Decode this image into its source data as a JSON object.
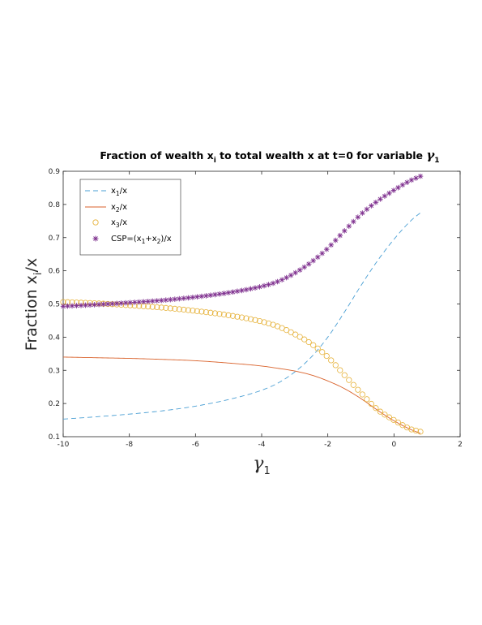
{
  "chart_data": {
    "type": "line",
    "title": {
      "prefix": "Fraction of wealth x",
      "sub": "i",
      "middle": " to total wealth x at t=0 for variable ",
      "symbol": "γ",
      "symbol_sub": "1"
    },
    "xlabel": {
      "symbol": "γ",
      "sub": "1"
    },
    "ylabel": {
      "prefix": "Fraction x",
      "sub": "i",
      "suffix": "/x"
    },
    "xlim": [
      -10,
      2
    ],
    "ylim": [
      0.1,
      0.9
    ],
    "xticks": [
      "-10",
      "-8",
      "-6",
      "-4",
      "-2",
      "0",
      "2"
    ],
    "yticks": [
      "0.1",
      "0.2",
      "0.3",
      "0.4",
      "0.5",
      "0.6",
      "0.7",
      "0.8",
      "0.9"
    ],
    "grid": false,
    "legend_position": "top-left",
    "x_points": [
      -10,
      -9,
      -8,
      -7,
      -6,
      -5,
      -4,
      -3.5,
      -3,
      -2.5,
      -2,
      -1.5,
      -1,
      -0.5,
      0,
      0.5,
      0.8
    ],
    "series": [
      {
        "legend": {
          "prefix": "x",
          "sub": "1",
          "suffix": "/x"
        },
        "style": "dashed",
        "marker": "none",
        "color": "#4a9fd4",
        "values": [
          0.153,
          0.16,
          0.168,
          0.178,
          0.192,
          0.212,
          0.24,
          0.262,
          0.295,
          0.34,
          0.4,
          0.475,
          0.555,
          0.63,
          0.695,
          0.75,
          0.775
        ]
      },
      {
        "legend": {
          "prefix": "x",
          "sub": "2",
          "suffix": "/x"
        },
        "style": "solid",
        "marker": "none",
        "color": "#d9622b",
        "values": [
          0.34,
          0.338,
          0.336,
          0.333,
          0.329,
          0.322,
          0.313,
          0.306,
          0.298,
          0.286,
          0.268,
          0.245,
          0.215,
          0.18,
          0.148,
          0.122,
          0.11
        ]
      },
      {
        "legend": {
          "prefix": "x",
          "sub": "3",
          "suffix": "/x"
        },
        "style": "none",
        "marker": "circle",
        "color": "#e6b23a",
        "values": [
          0.506,
          0.502,
          0.496,
          0.489,
          0.479,
          0.466,
          0.447,
          0.432,
          0.409,
          0.38,
          0.34,
          0.286,
          0.232,
          0.182,
          0.15,
          0.123,
          0.115
        ]
      },
      {
        "legend": {
          "prefix": "CSP=(x",
          "sub": "1",
          "middle": "+x",
          "sub2": "2",
          "suffix": ")/x"
        },
        "style": "none",
        "marker": "star",
        "color": "#7e2f8e",
        "values": [
          0.493,
          0.498,
          0.504,
          0.511,
          0.521,
          0.534,
          0.553,
          0.568,
          0.593,
          0.626,
          0.668,
          0.72,
          0.77,
          0.81,
          0.843,
          0.872,
          0.885
        ]
      }
    ]
  }
}
